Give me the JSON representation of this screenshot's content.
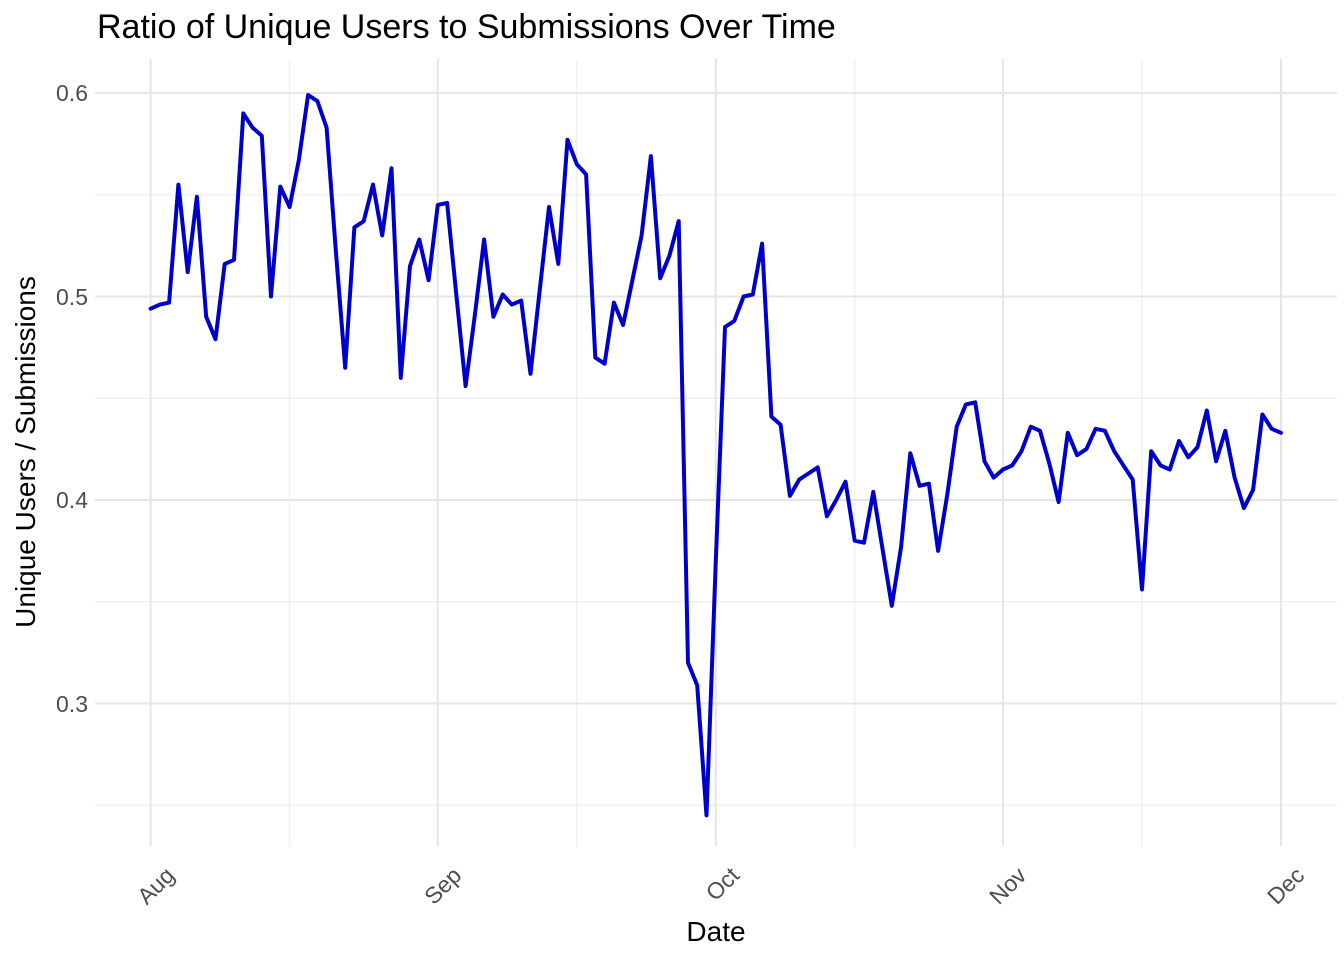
{
  "title": "Ratio of Unique Users to Submissions Over Time",
  "x_axis": {
    "label": "Date",
    "ticks": [
      "Aug",
      "Sep",
      "Oct",
      "Nov",
      "Dec"
    ]
  },
  "y_axis": {
    "label": "Unique Users / Submissions",
    "ticks": [
      "0.6",
      "0.5",
      "0.4",
      "0.3"
    ]
  },
  "colors": {
    "line": "#0000CD",
    "grid_major": "#E5E5E5",
    "grid_minor": "#F0F0F0",
    "tick_text": "#4D4D4D",
    "title_text": "#000000",
    "background": "#FFFFFF"
  },
  "chart_data": {
    "type": "line",
    "title": "Ratio of Unique Users to Submissions Over Time",
    "xlabel": "Date",
    "ylabel": "Unique Users / Submissions",
    "legend": "none",
    "grid": "on",
    "ylim": [
      0.23,
      0.617
    ],
    "y_major_ticks": [
      0.6,
      0.5,
      0.4,
      0.3
    ],
    "y_minor_ticks": [
      0.55,
      0.45,
      0.35,
      0.25
    ],
    "x_month_ticks": [
      "Aug",
      "Sep",
      "Oct",
      "Nov",
      "Dec"
    ],
    "x": [
      "08-01",
      "08-02",
      "08-03",
      "08-04",
      "08-05",
      "08-06",
      "08-07",
      "08-08",
      "08-09",
      "08-10",
      "08-11",
      "08-12",
      "08-13",
      "08-14",
      "08-15",
      "08-16",
      "08-17",
      "08-18",
      "08-19",
      "08-20",
      "08-21",
      "08-22",
      "08-23",
      "08-24",
      "08-25",
      "08-26",
      "08-27",
      "08-28",
      "08-29",
      "08-30",
      "08-31",
      "09-01",
      "09-02",
      "09-03",
      "09-04",
      "09-05",
      "09-06",
      "09-07",
      "09-08",
      "09-09",
      "09-10",
      "09-11",
      "09-12",
      "09-13",
      "09-14",
      "09-15",
      "09-16",
      "09-17",
      "09-18",
      "09-19",
      "09-20",
      "09-21",
      "09-22",
      "09-23",
      "09-24",
      "09-25",
      "09-26",
      "09-27",
      "09-28",
      "09-29",
      "09-30",
      "10-01",
      "10-02",
      "10-03",
      "10-04",
      "10-05",
      "10-06",
      "10-07",
      "10-08",
      "10-09",
      "10-10",
      "10-11",
      "10-12",
      "10-13",
      "10-14",
      "10-15",
      "10-16",
      "10-17",
      "10-18",
      "10-19",
      "10-20",
      "10-21",
      "10-22",
      "10-23",
      "10-24",
      "10-25",
      "10-26",
      "10-27",
      "10-28",
      "10-29",
      "10-30",
      "10-31",
      "11-01",
      "11-02",
      "11-03",
      "11-04",
      "11-05",
      "11-06",
      "11-07",
      "11-08",
      "11-09",
      "11-10",
      "11-11",
      "11-12",
      "11-13",
      "11-14",
      "11-15",
      "11-16",
      "11-17",
      "11-18",
      "11-19",
      "11-20",
      "11-21",
      "11-22",
      "11-23",
      "11-24",
      "11-25",
      "11-26",
      "11-27",
      "11-28",
      "11-29",
      "11-30",
      "12-01"
    ],
    "values": [
      0.494,
      0.496,
      0.497,
      0.555,
      0.512,
      0.549,
      0.49,
      0.479,
      0.516,
      0.518,
      0.59,
      0.583,
      0.579,
      0.5,
      0.554,
      0.544,
      0.567,
      0.599,
      0.596,
      0.583,
      0.522,
      0.465,
      0.534,
      0.537,
      0.555,
      0.53,
      0.563,
      0.46,
      0.515,
      0.528,
      0.508,
      0.545,
      0.546,
      0.501,
      0.456,
      0.491,
      0.528,
      0.49,
      0.501,
      0.496,
      0.498,
      0.462,
      0.503,
      0.544,
      0.516,
      0.577,
      0.565,
      0.56,
      0.47,
      0.467,
      0.497,
      0.486,
      0.508,
      0.53,
      0.569,
      0.509,
      0.52,
      0.537,
      0.32,
      0.309,
      0.245,
      0.37,
      0.485,
      0.488,
      0.5,
      0.501,
      0.526,
      0.441,
      0.437,
      0.402,
      0.41,
      0.413,
      0.416,
      0.392,
      0.4,
      0.409,
      0.38,
      0.379,
      0.404,
      0.376,
      0.348,
      0.377,
      0.423,
      0.407,
      0.408,
      0.375,
      0.403,
      0.436,
      0.447,
      0.448,
      0.419,
      0.411,
      0.415,
      0.417,
      0.424,
      0.436,
      0.434,
      0.418,
      0.399,
      0.433,
      0.422,
      0.425,
      0.435,
      0.434,
      0.424,
      0.417,
      0.41,
      0.356,
      0.424,
      0.417,
      0.415,
      0.429,
      0.421,
      0.426,
      0.444,
      0.419,
      0.434,
      0.411,
      0.396,
      0.405,
      0.442,
      0.435,
      0.433
    ]
  }
}
